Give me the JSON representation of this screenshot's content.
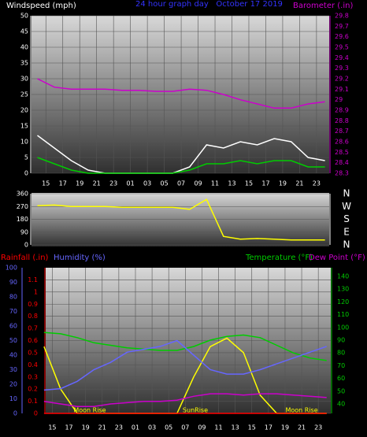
{
  "chart_data": [
    {
      "type": "line",
      "title": "24 hour graph day   October 17 2019",
      "y_label": "Windspeed (mph)",
      "y2_label": "Barometer (.in)",
      "x": [
        14,
        16,
        18,
        20,
        22,
        24,
        26,
        28,
        30,
        32,
        34,
        36,
        38,
        40,
        42,
        44,
        46,
        48
      ],
      "xlim": [
        13.3,
        48.5
      ],
      "xticks": [
        15,
        17,
        19,
        21,
        23,
        {
          "value": 25,
          "label": "01"
        },
        {
          "value": 27,
          "label": "03"
        },
        {
          "value": 29,
          "label": "05"
        },
        {
          "value": 31,
          "label": "07"
        },
        {
          "value": 33,
          "label": "09"
        },
        {
          "value": 35,
          "label": "11"
        },
        {
          "value": 37,
          "label": "13"
        },
        {
          "value": 39,
          "label": "15"
        },
        {
          "value": 41,
          "label": "17"
        },
        {
          "value": 43,
          "label": "19"
        },
        {
          "value": 45,
          "label": "21"
        },
        {
          "value": 47,
          "label": "23"
        }
      ],
      "ylim": [
        0,
        50
      ],
      "yticks": [
        0,
        5,
        10,
        15,
        20,
        25,
        30,
        35,
        40,
        45,
        50
      ],
      "y2lim": [
        28.3,
        29.8
      ],
      "y2ticks": [
        28.3,
        28.4,
        28.5,
        28.6,
        28.7,
        28.8,
        28.9,
        29,
        29.1,
        29.2,
        29.3,
        29.4,
        29.5,
        29.6,
        29.7,
        29.8
      ],
      "grid": true,
      "series": [
        {
          "color": "#ffffff",
          "values": [
            12,
            8,
            4,
            1,
            0,
            0,
            0,
            0,
            0,
            2,
            9,
            8,
            10,
            9,
            11,
            10,
            5,
            4
          ]
        },
        {
          "color": "#00cc00",
          "values": [
            5,
            3,
            1,
            0,
            0,
            0,
            0,
            0,
            0,
            1,
            3,
            3,
            4,
            3,
            4,
            4,
            2,
            2
          ]
        },
        {
          "color": "#cc00cc",
          "axis": "y2",
          "values": [
            29.2,
            29.12,
            29.1,
            29.1,
            29.1,
            29.09,
            29.09,
            29.08,
            29.08,
            29.1,
            29.09,
            29.05,
            29.0,
            28.96,
            28.92,
            28.92,
            28.96,
            28.98
          ]
        }
      ]
    },
    {
      "type": "line",
      "x": [
        14,
        16,
        18,
        20,
        22,
        24,
        26,
        28,
        30,
        32,
        34,
        36,
        38,
        40,
        42,
        44,
        46,
        48
      ],
      "xlim": [
        13.3,
        48.5
      ],
      "ylim": [
        0,
        360
      ],
      "yticks": [
        0,
        90,
        180,
        270,
        360
      ],
      "y2lim": [
        0,
        360
      ],
      "y2ticks": [
        {
          "value": 0,
          "label": "N"
        },
        {
          "value": 90,
          "label": "E"
        },
        {
          "value": 180,
          "label": "S"
        },
        {
          "value": 270,
          "label": "W"
        },
        {
          "value": 360,
          "label": "N"
        }
      ],
      "grid": true,
      "series": [
        {
          "color": "#ffff00",
          "values": [
            275,
            280,
            270,
            270,
            270,
            265,
            265,
            265,
            265,
            250,
            320,
            60,
            40,
            45,
            40,
            35,
            35,
            35
          ]
        }
      ]
    },
    {
      "type": "line",
      "y_label": "Rainfall (.in)",
      "y3_label": "Humidity (%)",
      "y2_label": "Temperature (°F)",
      "y2_label_b": "Dew Point (°F)",
      "x": [
        14,
        16,
        18,
        20,
        22,
        24,
        26,
        28,
        30,
        32,
        34,
        36,
        38,
        40,
        42,
        44,
        46,
        48
      ],
      "xlim": [
        14.2,
        48.5
      ],
      "xticks": [
        15,
        17,
        19,
        21,
        23,
        {
          "value": 25,
          "label": "01"
        },
        {
          "value": 27,
          "label": "03"
        },
        {
          "value": 29,
          "label": "05"
        },
        {
          "value": 31,
          "label": "07"
        },
        {
          "value": 33,
          "label": "09"
        },
        {
          "value": 35,
          "label": "11"
        },
        {
          "value": 37,
          "label": "13"
        },
        {
          "value": 39,
          "label": "15"
        },
        {
          "value": 41,
          "label": "17"
        },
        {
          "value": 43,
          "label": "19"
        },
        {
          "value": 45,
          "label": "21"
        },
        {
          "value": 47,
          "label": "23"
        }
      ],
      "ylim": [
        0,
        1.2
      ],
      "yticks": [
        0,
        0.1,
        0.2,
        0.3,
        0.4,
        0.5,
        0.6,
        0.7,
        0.8,
        0.9,
        1,
        1.1
      ],
      "y3lim": [
        0,
        100
      ],
      "y3ticks": [
        0,
        10,
        20,
        30,
        40,
        50,
        60,
        70,
        80,
        90,
        100
      ],
      "y2lim": [
        32.6,
        146.8
      ],
      "y2ticks": [
        40,
        50,
        60,
        70,
        80,
        90,
        100,
        110,
        120,
        130,
        140
      ],
      "grid": true,
      "annotations": [
        {
          "text": "Moon Rise",
          "x": 19.5
        },
        {
          "text": "SunRise",
          "x": 32.2
        },
        {
          "text": "Moon Rise",
          "x": 45
        }
      ],
      "series": [
        {
          "color": "#ffff00",
          "values": [
            0.55,
            0.2,
            0,
            0,
            0,
            0,
            0,
            0,
            0,
            0.3,
            0.55,
            0.62,
            0.5,
            0.15,
            0,
            0,
            0,
            0
          ]
        },
        {
          "color": "#00cc00",
          "axis": "y2",
          "values": [
            96,
            95,
            92,
            88,
            86,
            84,
            83,
            82,
            82,
            85,
            90,
            93,
            94,
            92,
            86,
            80,
            76,
            74
          ]
        },
        {
          "color": "#6666ff",
          "axis": "y3",
          "values": [
            16,
            17,
            22,
            30,
            35,
            42,
            44,
            46,
            50,
            40,
            30,
            27,
            27,
            30,
            34,
            38,
            42,
            46
          ]
        },
        {
          "color": "#cc00cc",
          "axis": "y2",
          "values": [
            42,
            40,
            38,
            38,
            40,
            41,
            42,
            42,
            43,
            46,
            48,
            48,
            47,
            48,
            48,
            47,
            46,
            45
          ]
        },
        {
          "color": "#ff0000",
          "values": [
            0,
            0,
            0,
            0,
            0,
            0,
            0,
            0,
            0,
            0,
            0,
            0,
            0,
            0,
            0,
            0,
            0,
            0
          ]
        }
      ]
    }
  ]
}
